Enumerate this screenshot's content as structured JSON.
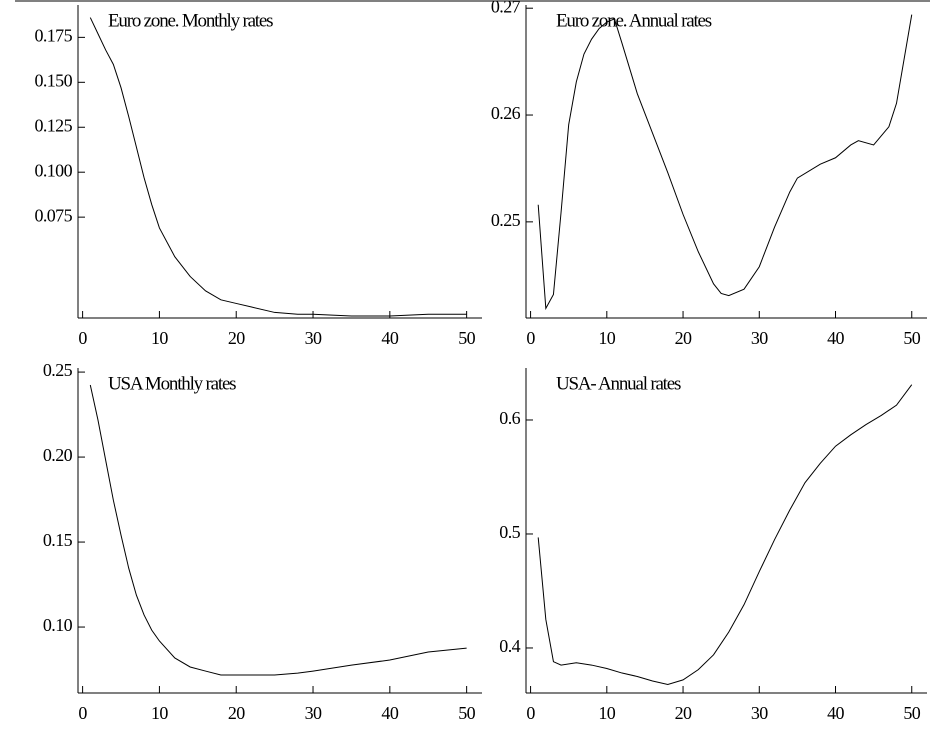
{
  "chart_data": [
    {
      "type": "line",
      "title": "Euro zone. Monthly rates",
      "color": "#000000",
      "x": [
        1,
        2,
        3,
        4,
        5,
        6,
        7,
        8,
        9,
        10,
        12,
        14,
        16,
        18,
        20,
        22,
        25,
        28,
        30,
        35,
        40,
        45,
        50
      ],
      "values": [
        0.186,
        0.177,
        0.168,
        0.16,
        0.147,
        0.131,
        0.114,
        0.097,
        0.082,
        0.069,
        0.053,
        0.042,
        0.034,
        0.029,
        0.027,
        0.025,
        0.022,
        0.021,
        0.021,
        0.02,
        0.02,
        0.021,
        0.021
      ],
      "xlim": [
        -0.6,
        52
      ],
      "xticks": [
        0,
        10,
        20,
        30,
        40,
        50
      ],
      "ylim": [
        0.0189,
        0.193
      ],
      "yticks": [
        0.075,
        {
          "value": 0.1,
          "label": "0.100"
        },
        0.125,
        {
          "value": 0.15,
          "label": "0.150"
        },
        0.175
      ]
    },
    {
      "type": "line",
      "title": "Euro zone. Annual rates",
      "color": "#000000",
      "x": [
        1,
        2,
        3,
        4,
        5,
        6,
        7,
        8,
        9,
        10,
        11,
        12,
        14,
        16,
        18,
        20,
        22,
        24,
        25,
        26,
        28,
        30,
        32,
        34,
        35,
        38,
        40,
        42,
        43,
        45,
        47,
        48,
        50
      ],
      "values": [
        0.2516,
        0.2419,
        0.2432,
        0.2509,
        0.2591,
        0.2631,
        0.2657,
        0.2671,
        0.2681,
        0.2687,
        0.269,
        0.2667,
        0.262,
        0.2583,
        0.2546,
        0.2507,
        0.2472,
        0.2442,
        0.2433,
        0.2431,
        0.2437,
        0.2458,
        0.2495,
        0.2528,
        0.2541,
        0.2554,
        0.256,
        0.2572,
        0.2576,
        0.2572,
        0.2589,
        0.2611,
        0.2694
      ],
      "xlim": [
        -0.6,
        52
      ],
      "xticks": [
        0,
        10,
        20,
        30,
        40,
        50
      ],
      "ylim": [
        0.241,
        0.2703
      ],
      "yticks": [
        0.25,
        0.26,
        0.27
      ]
    },
    {
      "type": "line",
      "title": "USA Monthly rates",
      "color": "#000000",
      "x": [
        1,
        2,
        3,
        4,
        5,
        6,
        7,
        8,
        9,
        10,
        12,
        14,
        16,
        18,
        20,
        25,
        28,
        30,
        35,
        40,
        45,
        50
      ],
      "values": [
        0.2424,
        0.2218,
        0.1982,
        0.1747,
        0.1541,
        0.1347,
        0.1188,
        0.1071,
        0.0982,
        0.0918,
        0.0818,
        0.0765,
        0.0741,
        0.0718,
        0.0718,
        0.0718,
        0.0729,
        0.0741,
        0.0776,
        0.0806,
        0.0853,
        0.0876
      ],
      "xlim": [
        -0.6,
        52
      ],
      "xticks": [
        0,
        10,
        20,
        30,
        40,
        50
      ],
      "ylim": [
        0.0612,
        0.2524
      ],
      "yticks": [
        0.25,
        {
          "value": 0.2,
          "label": "0.20"
        },
        0.15,
        {
          "value": 0.1,
          "label": "0.10"
        }
      ]
    },
    {
      "type": "line",
      "title": "USA- Annual rates",
      "color": "#000000",
      "x": [
        1,
        2,
        3,
        4,
        6,
        8,
        10,
        12,
        14,
        16,
        18,
        20,
        22,
        24,
        26,
        28,
        30,
        32,
        34,
        36,
        38,
        40,
        42,
        44,
        46,
        48,
        50
      ],
      "values": [
        0.497,
        0.425,
        0.388,
        0.385,
        0.387,
        0.385,
        0.382,
        0.378,
        0.375,
        0.371,
        0.368,
        0.372,
        0.381,
        0.394,
        0.414,
        0.438,
        0.467,
        0.495,
        0.521,
        0.545,
        0.562,
        0.577,
        0.587,
        0.596,
        0.604,
        0.613,
        0.631
      ],
      "xlim": [
        -0.6,
        52
      ],
      "xticks": [
        0,
        10,
        20,
        30,
        40,
        50
      ],
      "ylim": [
        0.3605,
        0.6456
      ],
      "yticks": [
        0.4,
        0.5,
        0.6
      ]
    }
  ]
}
